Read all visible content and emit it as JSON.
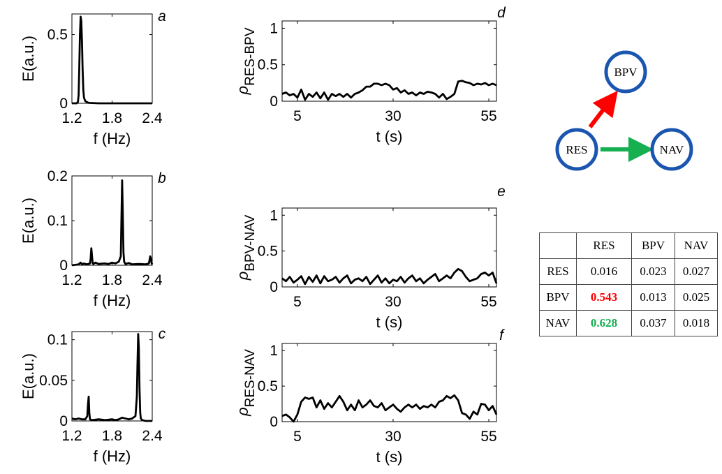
{
  "chart_data": [
    {
      "panel": "a",
      "type": "line",
      "xlabel": "f (Hz)",
      "ylabel": "E(a.u.)",
      "xlim": [
        1.2,
        2.4
      ],
      "ylim": [
        0,
        0.65
      ],
      "xticks": [
        "1.2",
        "1.8",
        "2.4"
      ],
      "yticks": [
        "0",
        "0.5"
      ],
      "series": [
        {
          "x": [
            1.2,
            1.27,
            1.29,
            1.3,
            1.31,
            1.32,
            1.33,
            1.34,
            1.35,
            1.36,
            1.37,
            1.38,
            1.4,
            1.45,
            1.6,
            2.4
          ],
          "y": [
            0.0,
            0.0,
            0.01,
            0.06,
            0.25,
            0.5,
            0.63,
            0.6,
            0.45,
            0.25,
            0.1,
            0.04,
            0.015,
            0.003,
            0.0,
            0.0
          ]
        }
      ]
    },
    {
      "panel": "b",
      "type": "line",
      "xlabel": "f (Hz)",
      "ylabel": "E(a.u.)",
      "xlim": [
        1.2,
        2.4
      ],
      "ylim": [
        0,
        0.2
      ],
      "xticks": [
        "1.2",
        "1.8",
        "2.4"
      ],
      "yticks": [
        "0",
        "0.1",
        "0.2"
      ],
      "series": [
        {
          "x": [
            1.2,
            1.3,
            1.33,
            1.35,
            1.38,
            1.42,
            1.47,
            1.48,
            1.49,
            1.5,
            1.51,
            1.52,
            1.55,
            1.6,
            1.68,
            1.75,
            1.8,
            1.85,
            1.9,
            1.93,
            1.94,
            1.95,
            1.96,
            1.97,
            1.98,
            2.0,
            2.05,
            2.1,
            2.2,
            2.3,
            2.35,
            2.36,
            2.37,
            2.38,
            2.39,
            2.4
          ],
          "y": [
            0.0,
            0.002,
            0.006,
            0.002,
            0.004,
            0.002,
            0.004,
            0.015,
            0.038,
            0.02,
            0.005,
            0.003,
            0.006,
            0.003,
            0.004,
            0.003,
            0.006,
            0.004,
            0.008,
            0.02,
            0.1,
            0.19,
            0.12,
            0.03,
            0.008,
            0.003,
            0.005,
            0.002,
            0.003,
            0.002,
            0.004,
            0.012,
            0.02,
            0.015,
            0.005,
            0.002
          ]
        }
      ]
    },
    {
      "panel": "c",
      "type": "line",
      "xlabel": "f (Hz)",
      "ylabel": "E(a.u.)",
      "xlim": [
        1.2,
        2.4
      ],
      "ylim": [
        0,
        0.11
      ],
      "xticks": [
        "1.2",
        "1.8",
        "2.4"
      ],
      "yticks": [
        "0",
        "0.05",
        "0.1"
      ],
      "series": [
        {
          "x": [
            1.2,
            1.25,
            1.3,
            1.35,
            1.4,
            1.43,
            1.44,
            1.45,
            1.46,
            1.47,
            1.5,
            1.6,
            1.7,
            1.8,
            1.85,
            1.9,
            1.95,
            2.05,
            2.1,
            2.15,
            2.17,
            2.18,
            2.19,
            2.2,
            2.21,
            2.22,
            2.23,
            2.25,
            2.3,
            2.35,
            2.4
          ],
          "y": [
            0.003,
            0.002,
            0.003,
            0.002,
            0.002,
            0.006,
            0.02,
            0.03,
            0.01,
            0.002,
            0.001,
            0.002,
            0.001,
            0.002,
            0.001,
            0.002,
            0.004,
            0.002,
            0.003,
            0.006,
            0.03,
            0.07,
            0.107,
            0.09,
            0.04,
            0.01,
            0.003,
            0.001,
            0.0,
            0.0,
            0.0
          ]
        }
      ]
    },
    {
      "panel": "d",
      "type": "line",
      "xlabel": "t (s)",
      "ylabel": "ρ",
      "ylabel_sub": "RES-BPV",
      "xlim": [
        1,
        57
      ],
      "ylim": [
        0,
        1.1
      ],
      "xticks": [
        "5",
        "30",
        "55"
      ],
      "yticks": [
        "0",
        "0.5",
        "1"
      ],
      "series": [
        {
          "x": [
            1,
            2,
            3,
            4,
            5,
            6,
            7,
            8,
            9,
            10,
            11,
            12,
            13,
            14,
            15,
            16,
            17,
            18,
            19,
            20,
            21,
            22,
            23,
            24,
            25,
            26,
            27,
            28,
            29,
            30,
            31,
            32,
            33,
            34,
            35,
            36,
            37,
            38,
            39,
            40,
            41,
            42,
            43,
            44,
            45,
            46,
            47,
            48,
            49,
            50,
            51,
            52,
            53,
            54,
            55,
            56,
            57
          ],
          "y": [
            0.1,
            0.12,
            0.08,
            0.1,
            0.05,
            0.16,
            0.02,
            0.1,
            0.06,
            0.12,
            0.04,
            0.12,
            0.02,
            0.1,
            0.07,
            0.1,
            0.06,
            0.1,
            0.05,
            0.1,
            0.12,
            0.15,
            0.2,
            0.2,
            0.24,
            0.24,
            0.22,
            0.24,
            0.22,
            0.16,
            0.18,
            0.12,
            0.15,
            0.1,
            0.12,
            0.08,
            0.12,
            0.1,
            0.13,
            0.12,
            0.1,
            0.05,
            0.1,
            0.03,
            0.06,
            0.1,
            0.27,
            0.28,
            0.26,
            0.25,
            0.22,
            0.24,
            0.23,
            0.25,
            0.22,
            0.24,
            0.22
          ]
        }
      ]
    },
    {
      "panel": "e",
      "type": "line",
      "xlabel": "t (s)",
      "ylabel": "ρ",
      "ylabel_sub": "BPV-NAV",
      "xlim": [
        1,
        57
      ],
      "ylim": [
        0,
        1.1
      ],
      "xticks": [
        "5",
        "30",
        "55"
      ],
      "yticks": [
        "0",
        "0.5",
        "1"
      ],
      "series": [
        {
          "x": [
            1,
            2,
            3,
            4,
            5,
            6,
            7,
            8,
            9,
            10,
            11,
            12,
            13,
            14,
            15,
            16,
            17,
            18,
            19,
            20,
            21,
            22,
            23,
            24,
            25,
            26,
            27,
            28,
            29,
            30,
            31,
            32,
            33,
            34,
            35,
            36,
            37,
            38,
            39,
            40,
            41,
            42,
            43,
            44,
            45,
            46,
            47,
            48,
            49,
            50,
            51,
            52,
            53,
            54,
            55,
            56,
            57
          ],
          "y": [
            0.12,
            0.08,
            0.14,
            0.06,
            0.1,
            0.15,
            0.04,
            0.14,
            0.07,
            0.16,
            0.05,
            0.15,
            0.08,
            0.1,
            0.14,
            0.06,
            0.12,
            0.16,
            0.05,
            0.1,
            0.12,
            0.08,
            0.14,
            0.04,
            0.1,
            0.16,
            0.06,
            0.12,
            0.05,
            0.1,
            0.08,
            0.14,
            0.06,
            0.12,
            0.16,
            0.08,
            0.12,
            0.05,
            0.1,
            0.14,
            0.18,
            0.08,
            0.12,
            0.16,
            0.12,
            0.2,
            0.25,
            0.22,
            0.14,
            0.08,
            0.1,
            0.12,
            0.18,
            0.2,
            0.16,
            0.2,
            0.05
          ]
        }
      ]
    },
    {
      "panel": "f",
      "type": "line",
      "xlabel": "t (s)",
      "ylabel": "ρ",
      "ylabel_sub": "RES-NAV",
      "xlim": [
        1,
        57
      ],
      "ylim": [
        0,
        1.1
      ],
      "xticks": [
        "5",
        "30",
        "55"
      ],
      "yticks": [
        "0",
        "0.5",
        "1"
      ],
      "series": [
        {
          "x": [
            1,
            2,
            3,
            4,
            5,
            6,
            7,
            8,
            9,
            10,
            11,
            12,
            13,
            14,
            15,
            16,
            17,
            18,
            19,
            20,
            21,
            22,
            23,
            24,
            25,
            26,
            27,
            28,
            29,
            30,
            31,
            32,
            33,
            34,
            35,
            36,
            37,
            38,
            39,
            40,
            41,
            42,
            43,
            44,
            45,
            46,
            47,
            48,
            49,
            50,
            51,
            52,
            53,
            54,
            55,
            56,
            57
          ],
          "y": [
            0.08,
            0.1,
            0.06,
            0.0,
            0.1,
            0.28,
            0.34,
            0.32,
            0.34,
            0.2,
            0.3,
            0.18,
            0.26,
            0.2,
            0.28,
            0.36,
            0.28,
            0.16,
            0.24,
            0.16,
            0.3,
            0.2,
            0.24,
            0.3,
            0.22,
            0.2,
            0.26,
            0.16,
            0.2,
            0.24,
            0.18,
            0.14,
            0.2,
            0.24,
            0.2,
            0.24,
            0.18,
            0.22,
            0.2,
            0.24,
            0.2,
            0.28,
            0.3,
            0.36,
            0.33,
            0.37,
            0.3,
            0.12,
            0.1,
            0.04,
            0.14,
            0.1,
            0.25,
            0.24,
            0.16,
            0.22,
            0.1
          ]
        }
      ]
    }
  ],
  "panel_labels": [
    "a",
    "b",
    "c",
    "d",
    "e",
    "f"
  ],
  "network": {
    "nodes": [
      "BPV",
      "RES",
      "NAV"
    ],
    "node_color": "#1a56b0",
    "edges": [
      {
        "from": "RES",
        "to": "BPV",
        "color": "#ff0000"
      },
      {
        "from": "RES",
        "to": "NAV",
        "color": "#16b050"
      }
    ]
  },
  "matrix": {
    "columns": [
      "",
      "RES",
      "BPV",
      "NAV"
    ],
    "rows": [
      {
        "label": "RES",
        "values": [
          "0.016",
          "0.023",
          "0.027"
        ]
      },
      {
        "label": "BPV",
        "values": [
          "0.543",
          "0.013",
          "0.025"
        ]
      },
      {
        "label": "NAV",
        "values": [
          "0.628",
          "0.037",
          "0.018"
        ]
      }
    ],
    "highlight_colors": {
      "BPV": "#ff0000",
      "NAV": "#16b050"
    }
  }
}
